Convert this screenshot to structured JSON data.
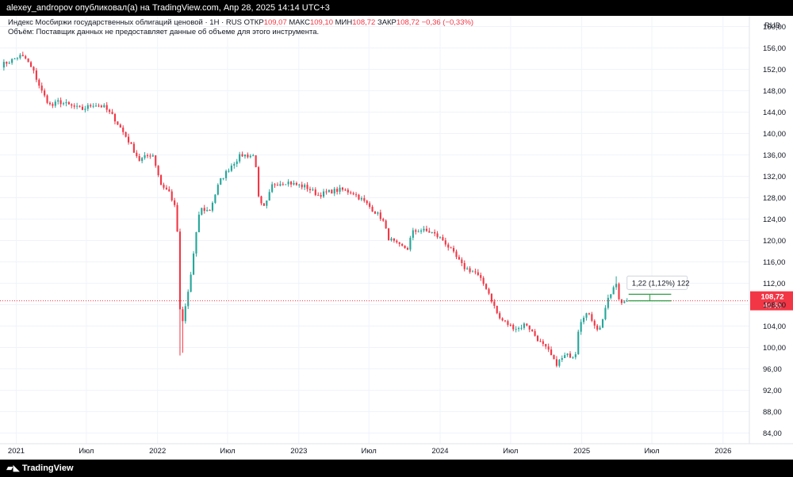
{
  "header": {
    "publisher_line": "alexey_andropov опубликовал(а) на TradingView.com, Апр 28, 2025 14:14 UTC+3"
  },
  "legend": {
    "title": "Индекс Мосбиржи государственных облигаций ценовой · 1Н · RUS",
    "open_label": "ОТКР",
    "open_value": "109,07",
    "high_label": "МАКС",
    "high_value": "109,10",
    "low_label": "МИН",
    "low_value": "108,72",
    "close_label": "ЗАКР",
    "close_value": "108,72",
    "change_value": "−0,36 (−0,33%)",
    "volume_note": "Объём: Поставщик данных не предоставляет данные об объеме для этого инструмента."
  },
  "footer": {
    "brand": "TradingView",
    "logo_icon": "tv-logo-icon"
  },
  "colors": {
    "up": "#26a69a",
    "down": "#f23645",
    "price_line": "#f23645",
    "measure": "#2e9e44"
  },
  "chart_data": {
    "type": "candlestick",
    "currency": "RUB",
    "ylim": [
      82,
      162
    ],
    "y_ticks": [
      84,
      88,
      92,
      96,
      100,
      104,
      108,
      112,
      116,
      120,
      124,
      128,
      132,
      136,
      140,
      144,
      148,
      152,
      156,
      160
    ],
    "y_tick_labels": [
      "84,00",
      "88,00",
      "92,00",
      "96,00",
      "100,00",
      "104,00",
      "108,00",
      "112,00",
      "116,00",
      "120,00",
      "124,00",
      "128,00",
      "132,00",
      "136,00",
      "140,00",
      "144,00",
      "148,00",
      "152,00",
      "156,00",
      "160,00"
    ],
    "x_range": [
      "2020-11-20",
      "2026-03-10"
    ],
    "x_ticks": [
      {
        "date": "2021-01-01",
        "label": "2021"
      },
      {
        "date": "2021-07-01",
        "label": "Июл"
      },
      {
        "date": "2022-01-01",
        "label": "2022"
      },
      {
        "date": "2022-07-01",
        "label": "Июл"
      },
      {
        "date": "2023-01-01",
        "label": "2023"
      },
      {
        "date": "2023-07-01",
        "label": "Июл"
      },
      {
        "date": "2024-01-01",
        "label": "2024"
      },
      {
        "date": "2024-07-01",
        "label": "Июл"
      },
      {
        "date": "2025-01-01",
        "label": "2025"
      },
      {
        "date": "2025-07-01",
        "label": "Июл"
      },
      {
        "date": "2026-01-01",
        "label": "2026"
      }
    ],
    "anchors": [
      [
        "2020-11-23",
        152.8
      ],
      [
        "2020-12-15",
        153.5
      ],
      [
        "2021-01-10",
        154.5
      ],
      [
        "2021-01-25",
        154.0
      ],
      [
        "2021-02-15",
        151.5
      ],
      [
        "2021-03-10",
        147.5
      ],
      [
        "2021-04-01",
        145.0
      ],
      [
        "2021-04-20",
        146.0
      ],
      [
        "2021-05-20",
        145.2
      ],
      [
        "2021-06-20",
        144.5
      ],
      [
        "2021-07-20",
        145.5
      ],
      [
        "2021-08-15",
        145.0
      ],
      [
        "2021-09-10",
        143.0
      ],
      [
        "2021-10-15",
        139.0
      ],
      [
        "2021-11-15",
        135.0
      ],
      [
        "2021-12-10",
        136.0
      ],
      [
        "2021-12-20",
        136.0
      ],
      [
        "2022-01-10",
        130.5
      ],
      [
        "2022-02-01",
        129.0
      ],
      [
        "2022-02-20",
        125.0
      ],
      [
        "2022-02-25",
        108.5
      ],
      [
        "2022-03-05",
        104.0
      ],
      [
        "2022-03-25",
        112.0
      ],
      [
        "2022-04-20",
        126.0
      ],
      [
        "2022-05-15",
        125.5
      ],
      [
        "2022-06-10",
        131.0
      ],
      [
        "2022-07-10",
        134.0
      ],
      [
        "2022-08-05",
        136.0
      ],
      [
        "2022-09-10",
        135.8
      ],
      [
        "2022-09-20",
        127.0
      ],
      [
        "2022-10-05",
        126.0
      ],
      [
        "2022-10-25",
        130.5
      ],
      [
        "2022-12-01",
        131.0
      ],
      [
        "2022-12-20",
        130.5
      ],
      [
        "2023-01-20",
        130.0
      ],
      [
        "2023-02-20",
        128.5
      ],
      [
        "2023-03-25",
        129.2
      ],
      [
        "2023-04-20",
        129.5
      ],
      [
        "2023-05-20",
        129.0
      ],
      [
        "2023-06-15",
        127.5
      ],
      [
        "2023-07-15",
        125.5
      ],
      [
        "2023-08-05",
        124.0
      ],
      [
        "2023-08-20",
        120.5
      ],
      [
        "2023-09-15",
        119.0
      ],
      [
        "2023-10-10",
        118.5
      ],
      [
        "2023-10-20",
        121.5
      ],
      [
        "2023-11-10",
        122.0
      ],
      [
        "2023-12-10",
        121.5
      ],
      [
        "2024-01-10",
        120.0
      ],
      [
        "2024-02-05",
        117.5
      ],
      [
        "2024-03-01",
        115.0
      ],
      [
        "2024-04-01",
        114.0
      ],
      [
        "2024-05-01",
        111.0
      ],
      [
        "2024-06-01",
        105.5
      ],
      [
        "2024-07-01",
        104.0
      ],
      [
        "2024-07-20",
        103.5
      ],
      [
        "2024-08-10",
        104.5
      ],
      [
        "2024-08-25",
        103.0
      ],
      [
        "2024-09-15",
        101.0
      ],
      [
        "2024-10-10",
        99.0
      ],
      [
        "2024-10-25",
        96.8
      ],
      [
        "2024-11-20",
        98.5
      ],
      [
        "2024-12-15",
        98.5
      ],
      [
        "2024-12-25",
        104.5
      ],
      [
        "2025-01-10",
        106.5
      ],
      [
        "2025-01-25",
        105.5
      ],
      [
        "2025-02-15",
        103.0
      ],
      [
        "2025-03-05",
        108.0
      ],
      [
        "2025-03-20",
        110.5
      ],
      [
        "2025-03-30",
        112.0
      ],
      [
        "2025-04-10",
        108.0
      ],
      [
        "2025-04-20",
        109.0
      ],
      [
        "2025-04-28",
        108.72
      ]
    ],
    "last_price": 108.72,
    "last_price_label": "108,72",
    "timer_label": "4d 5h",
    "measurement": {
      "from_date": "2025-05-02",
      "to_date": "2025-08-20",
      "from_value": 108.72,
      "to_value": 109.94,
      "label": "1,22 (1,12%) 122"
    }
  }
}
